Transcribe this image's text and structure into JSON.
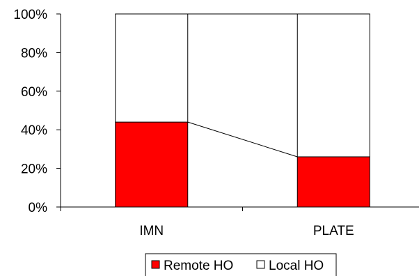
{
  "chart_data": {
    "type": "bar",
    "stacked": true,
    "percent_stacked": true,
    "categories": [
      "IMN",
      "PLATE"
    ],
    "series": [
      {
        "name": "Remote HO",
        "values": [
          44,
          26
        ],
        "color": "#ff0000"
      },
      {
        "name": "Local HO",
        "values": [
          56,
          74
        ],
        "color": "#ffffff"
      }
    ],
    "series_lines": true,
    "y_ticks": [
      "0%",
      "20%",
      "40%",
      "60%",
      "80%",
      "100%"
    ],
    "ylim": [
      0,
      100
    ],
    "grid": false,
    "legend_position": "bottom",
    "title": "",
    "xlabel": "",
    "ylabel": ""
  }
}
